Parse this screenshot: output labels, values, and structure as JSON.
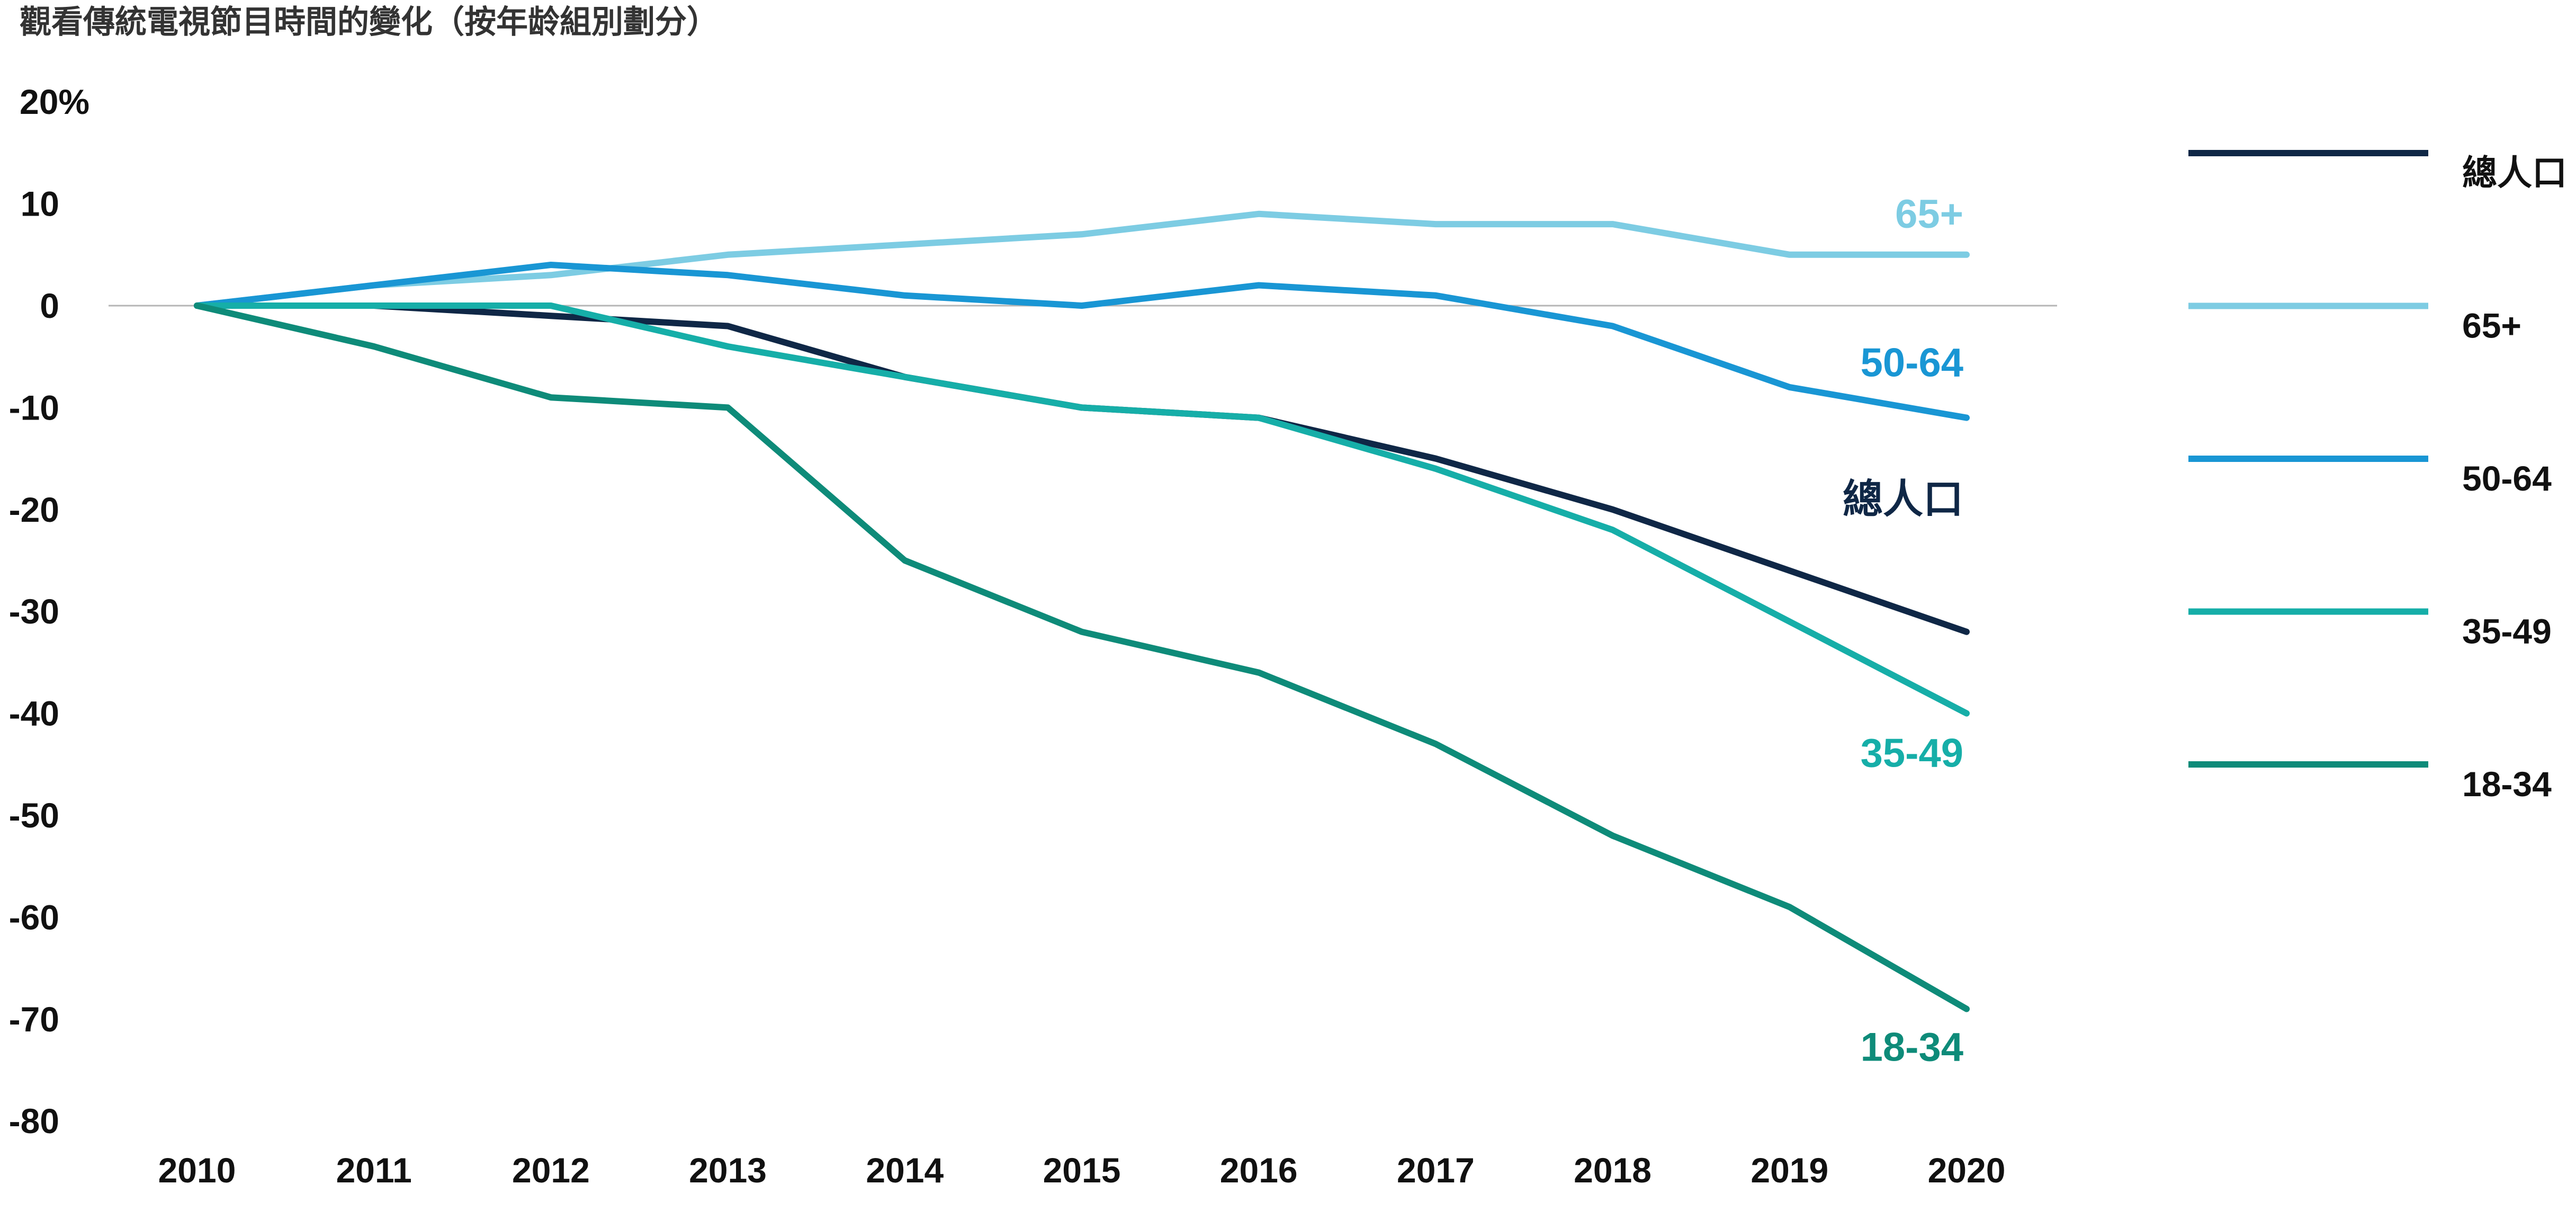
{
  "chart_data": {
    "type": "line",
    "title": "觀看傳統電視節目時間的變化（按年龄組別劃分）",
    "xlabel": "",
    "ylabel": "",
    "x": [
      2010,
      2011,
      2012,
      2013,
      2014,
      2015,
      2016,
      2017,
      2018,
      2019,
      2020
    ],
    "y_ticks": [
      20,
      10,
      0,
      -10,
      -20,
      -30,
      -40,
      -50,
      -60,
      -70,
      -80
    ],
    "y_tick_labels": [
      "20%",
      "10",
      "0",
      "-10",
      "-20",
      "-30",
      "-40",
      "-50",
      "-60",
      "-70",
      "-80"
    ],
    "ylim": [
      -80,
      20
    ],
    "grid": false,
    "zero_line": true,
    "legend": "right",
    "series": [
      {
        "name": "總人口",
        "color": "#0f2746",
        "values": [
          0,
          0,
          -1,
          -2,
          -7,
          -10,
          -11,
          -15,
          -20,
          -26,
          -32
        ]
      },
      {
        "name": "65+",
        "color": "#7dcce3",
        "values": [
          0,
          2,
          3,
          5,
          6,
          7,
          9,
          8,
          8,
          5,
          5
        ]
      },
      {
        "name": "50-64",
        "color": "#1996d4",
        "values": [
          0,
          2,
          4,
          3,
          1,
          0,
          2,
          1,
          -2,
          -8,
          -11
        ]
      },
      {
        "name": "35-49",
        "color": "#16aea8",
        "values": [
          0,
          0,
          0,
          -4,
          -7,
          -10,
          -11,
          -16,
          -22,
          -31,
          -40
        ]
      },
      {
        "name": "18-34",
        "color": "#0e8b79",
        "values": [
          0,
          -4,
          -9,
          -10,
          -25,
          -32,
          -36,
          -43,
          -52,
          -59,
          -69
        ]
      }
    ]
  }
}
